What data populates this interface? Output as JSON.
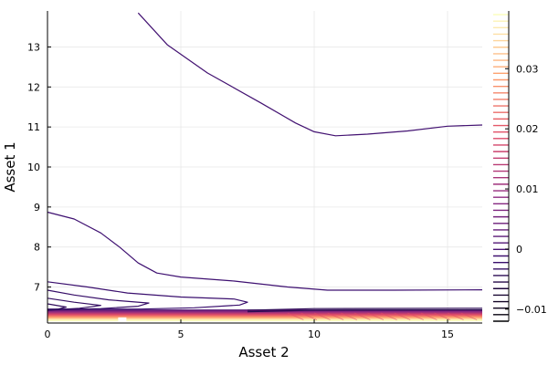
{
  "chart_data": {
    "type": "contour",
    "xlabel": "Asset 2",
    "ylabel": "Asset 1",
    "xlim": [
      0,
      16.3
    ],
    "ylim": [
      6.1,
      13.9
    ],
    "x_ticks": [
      0,
      5,
      10,
      15
    ],
    "y_ticks": [
      7,
      8,
      9,
      10,
      11,
      12,
      13
    ],
    "grid": true,
    "colorbar": {
      "colormap": "inferno",
      "range": [
        -0.012,
        0.039
      ],
      "ticks": [
        -0.01,
        0,
        0.01,
        0.02,
        0.03
      ],
      "tick_labels": [
        "−0.01",
        "0",
        "0.01",
        "0.02",
        "0.03"
      ]
    },
    "colors": {
      "low": "#3b0f70",
      "mid": "#d4486a",
      "high": "#fcffa4"
    },
    "contour_lines": [
      {
        "level": -0.003,
        "points": [
          [
            3.4,
            13.85
          ],
          [
            4.5,
            13.05
          ],
          [
            6.0,
            12.35
          ],
          [
            8.0,
            11.6
          ],
          [
            9.3,
            11.1
          ],
          [
            10.0,
            10.88
          ],
          [
            10.8,
            10.78
          ],
          [
            12.0,
            10.82
          ],
          [
            13.5,
            10.9
          ],
          [
            15.0,
            11.02
          ],
          [
            16.3,
            11.05
          ]
        ]
      },
      {
        "level": -0.004,
        "points": [
          [
            0,
            8.87
          ],
          [
            1.0,
            8.7
          ],
          [
            2.0,
            8.35
          ],
          [
            2.7,
            8.0
          ],
          [
            3.4,
            7.6
          ],
          [
            4.1,
            7.35
          ],
          [
            5.0,
            7.25
          ],
          [
            7.0,
            7.15
          ],
          [
            9.0,
            7.0
          ],
          [
            10.5,
            6.92
          ],
          [
            13.0,
            6.92
          ],
          [
            16.3,
            6.93
          ]
        ]
      },
      {
        "level": -0.005,
        "points": [
          [
            0,
            7.13
          ],
          [
            1.5,
            7.0
          ],
          [
            3.0,
            6.85
          ],
          [
            5.0,
            6.75
          ],
          [
            7.0,
            6.7
          ],
          [
            7.5,
            6.62
          ],
          [
            7.2,
            6.55
          ],
          [
            5.5,
            6.48
          ],
          [
            3.5,
            6.45
          ],
          [
            0,
            6.45
          ]
        ]
      },
      {
        "level": -0.006,
        "points": [
          [
            0,
            6.92
          ],
          [
            1.0,
            6.8
          ],
          [
            2.3,
            6.68
          ],
          [
            3.8,
            6.6
          ],
          [
            3.4,
            6.52
          ],
          [
            2.0,
            6.46
          ],
          [
            0,
            6.43
          ]
        ]
      },
      {
        "level": -0.007,
        "points": [
          [
            0,
            6.72
          ],
          [
            1.0,
            6.62
          ],
          [
            2.0,
            6.54
          ],
          [
            1.2,
            6.47
          ],
          [
            0,
            6.42
          ]
        ]
      },
      {
        "level": -0.008,
        "points": [
          [
            0,
            6.58
          ],
          [
            0.7,
            6.5
          ],
          [
            0.4,
            6.45
          ],
          [
            0,
            6.42
          ]
        ]
      },
      {
        "level": -0.009,
        "points": [
          [
            7.5,
            6.42
          ],
          [
            10.0,
            6.46
          ],
          [
            16.3,
            6.47
          ]
        ]
      },
      {
        "level": -0.01,
        "points": [
          [
            7.5,
            6.38
          ],
          [
            10.0,
            6.42
          ],
          [
            16.3,
            6.43
          ]
        ]
      }
    ]
  }
}
